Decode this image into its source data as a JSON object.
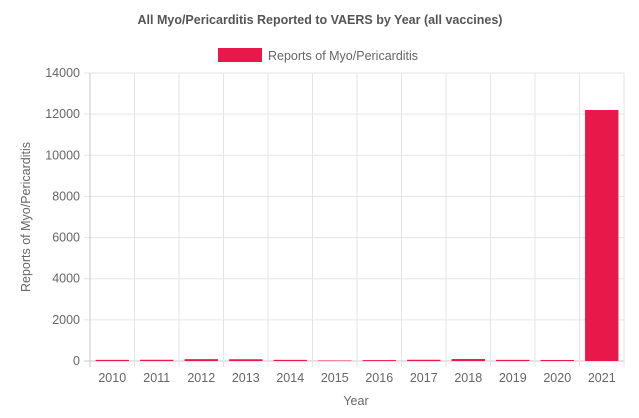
{
  "chart_data": {
    "type": "bar",
    "title": "All Myo/Pericarditis Reported to VAERS by Year (all vaccines)",
    "xlabel": "Year",
    "ylabel": "Reports of Myo/Pericarditis",
    "categories": [
      "2010",
      "2011",
      "2012",
      "2013",
      "2014",
      "2015",
      "2016",
      "2017",
      "2018",
      "2019",
      "2020",
      "2021"
    ],
    "series": [
      {
        "name": "Reports of Myo/Pericarditis",
        "color": "#e8194a",
        "values": [
          55,
          60,
          90,
          85,
          55,
          25,
          45,
          60,
          95,
          55,
          50,
          12200
        ]
      }
    ],
    "ylim": [
      0,
      14000
    ],
    "yticks": [
      "0",
      "2000",
      "4000",
      "6000",
      "8000",
      "10000",
      "12000",
      "14000"
    ],
    "grid": true,
    "legend_position": "top"
  }
}
